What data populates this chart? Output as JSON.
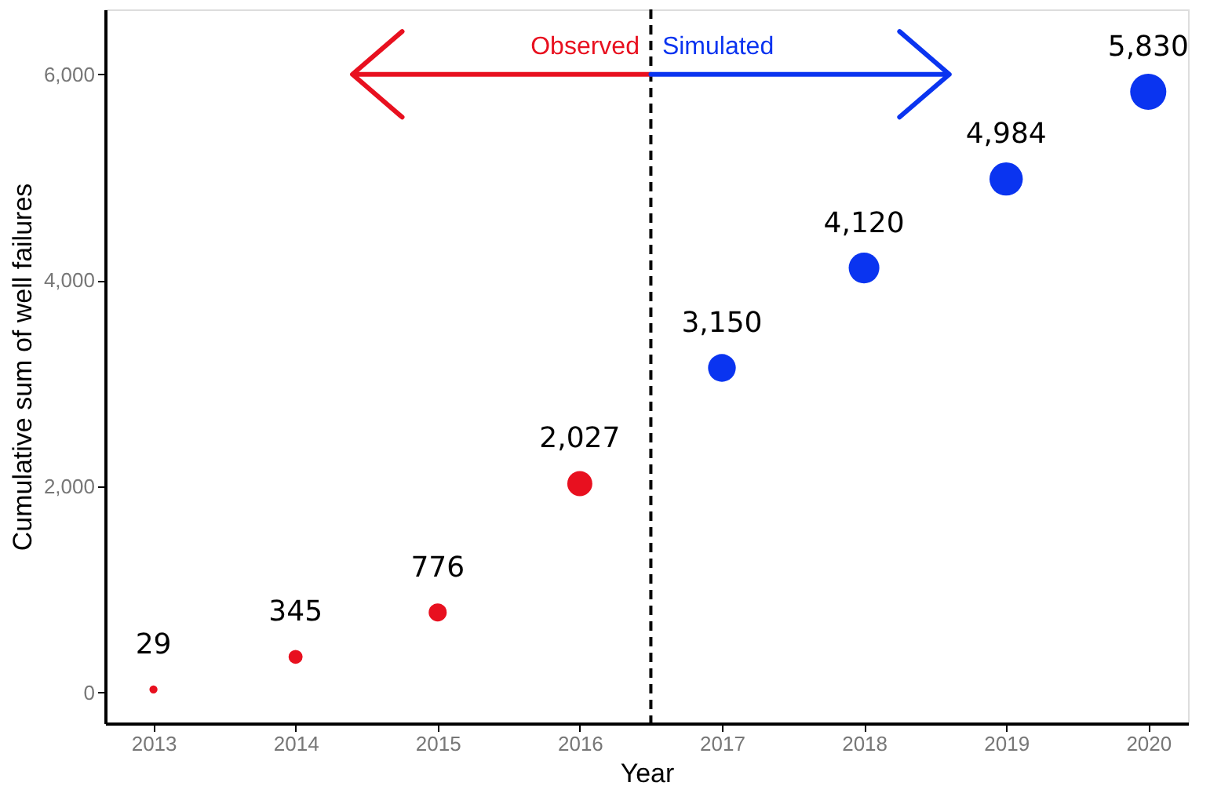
{
  "chart_data": {
    "type": "bubble",
    "xlabel": "Year",
    "ylabel": "Cumulative sum of well failures",
    "series": [
      {
        "name": "Observed",
        "color": "#e8101f",
        "x": [
          2013,
          2014,
          2015,
          2016
        ],
        "values": [
          29,
          345,
          776,
          2027
        ],
        "sizes": [
          0.05,
          0.15,
          0.25,
          0.48
        ],
        "value_labels": [
          "29",
          "345",
          "776",
          "2,027"
        ]
      },
      {
        "name": "Simulated",
        "color": "#0a34f0",
        "x": [
          2017,
          2018,
          2019,
          2020
        ],
        "values": [
          3150,
          4120,
          4984,
          5830
        ],
        "sizes": [
          0.59,
          0.72,
          0.85,
          1
        ],
        "value_labels": [
          "3,150",
          "4,120",
          "4,984",
          "5,830"
        ]
      }
    ],
    "xlim": [
      2012.66,
      2020.28
    ],
    "xticks": [
      2013,
      2014,
      2015,
      2016,
      2017,
      2018,
      2019,
      2020
    ],
    "ylim": [
      -300,
      6630
    ],
    "yticks": [
      0,
      {
        "value": 2000,
        "label": "2,000"
      },
      {
        "value": 4000,
        "label": "4,000"
      },
      {
        "value": 6000,
        "label": "6,000"
      }
    ],
    "ref_lines": [
      {
        "axis": "x",
        "value": 2016.5,
        "line_style": "dashed",
        "color": "#000000"
      }
    ],
    "grid": false
  }
}
